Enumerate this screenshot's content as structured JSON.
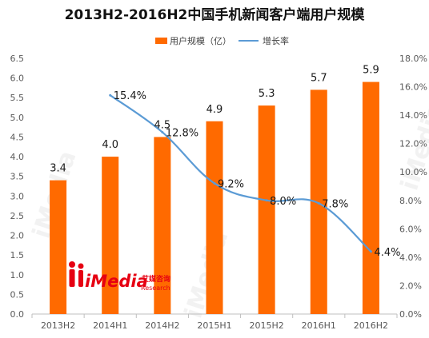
{
  "chart_data": {
    "type": "bar",
    "title": "2013H2-2016H2中国手机新闻客户端用户规模",
    "categories": [
      "2013H2",
      "2014H1",
      "2014H2",
      "2015H1",
      "2015H2",
      "2016H1",
      "2016H2"
    ],
    "series": [
      {
        "name": "用户规模（亿）",
        "type": "bar",
        "axis": "left",
        "color": "#FF6A00",
        "values": [
          3.4,
          4.0,
          4.5,
          4.9,
          5.3,
          5.7,
          5.9
        ],
        "labels": [
          "3.4",
          "4.0",
          "4.5",
          "4.9",
          "5.3",
          "5.7",
          "5.9"
        ]
      },
      {
        "name": "增长率",
        "type": "line",
        "axis": "right",
        "color": "#5B9BD5",
        "values": [
          null,
          15.4,
          12.8,
          9.2,
          8.0,
          7.8,
          4.4
        ],
        "labels": [
          "",
          "15.4%",
          "12.8%",
          "9.2%",
          "8.0%",
          "7.8%",
          "4.4%"
        ]
      }
    ],
    "y_left": {
      "min": 0,
      "max": 6.5,
      "ticks": [
        "0.0",
        "0.5",
        "1.0",
        "1.5",
        "2.0",
        "2.5",
        "3.0",
        "3.5",
        "4.0",
        "4.5",
        "5.0",
        "5.5",
        "6.0",
        "6.5"
      ]
    },
    "y_right": {
      "min": 0,
      "max": 18,
      "ticks": [
        "0.0%",
        "2.0%",
        "4.0%",
        "6.0%",
        "8.0%",
        "10.0%",
        "12.0%",
        "14.0%",
        "16.0%",
        "18.0%"
      ]
    },
    "grid": false,
    "legend_position": "top-center"
  },
  "logo": {
    "brand": "iMedia",
    "sub_cn": "艾媒咨询",
    "sub_en": "Research"
  }
}
